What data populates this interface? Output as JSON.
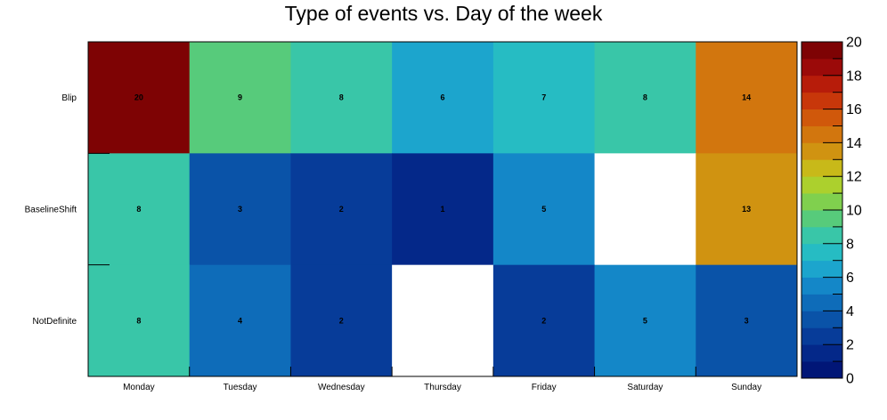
{
  "chart_data": {
    "type": "heatmap",
    "title": "Type of events vs. Day of the week",
    "x_categories": [
      "Monday",
      "Tuesday",
      "Wednesday",
      "Thursday",
      "Friday",
      "Saturday",
      "Sunday"
    ],
    "y_categories": [
      "Blip",
      "BaselineShift",
      "NotDefinite"
    ],
    "values": [
      [
        20,
        9,
        8,
        6,
        7,
        8,
        14
      ],
      [
        8,
        3,
        2,
        1,
        5,
        null,
        13
      ],
      [
        8,
        4,
        2,
        null,
        2,
        5,
        3
      ]
    ],
    "zlim": [
      0,
      20
    ],
    "colorbar_ticks": [
      0,
      2,
      4,
      6,
      8,
      10,
      12,
      14,
      16,
      18,
      20
    ],
    "colorbar_levels": 20,
    "colormap": "kBird-like (dark blue → cyan → green → yellow → orange → dark red)",
    "empty_cell_color": "#ffffff"
  }
}
